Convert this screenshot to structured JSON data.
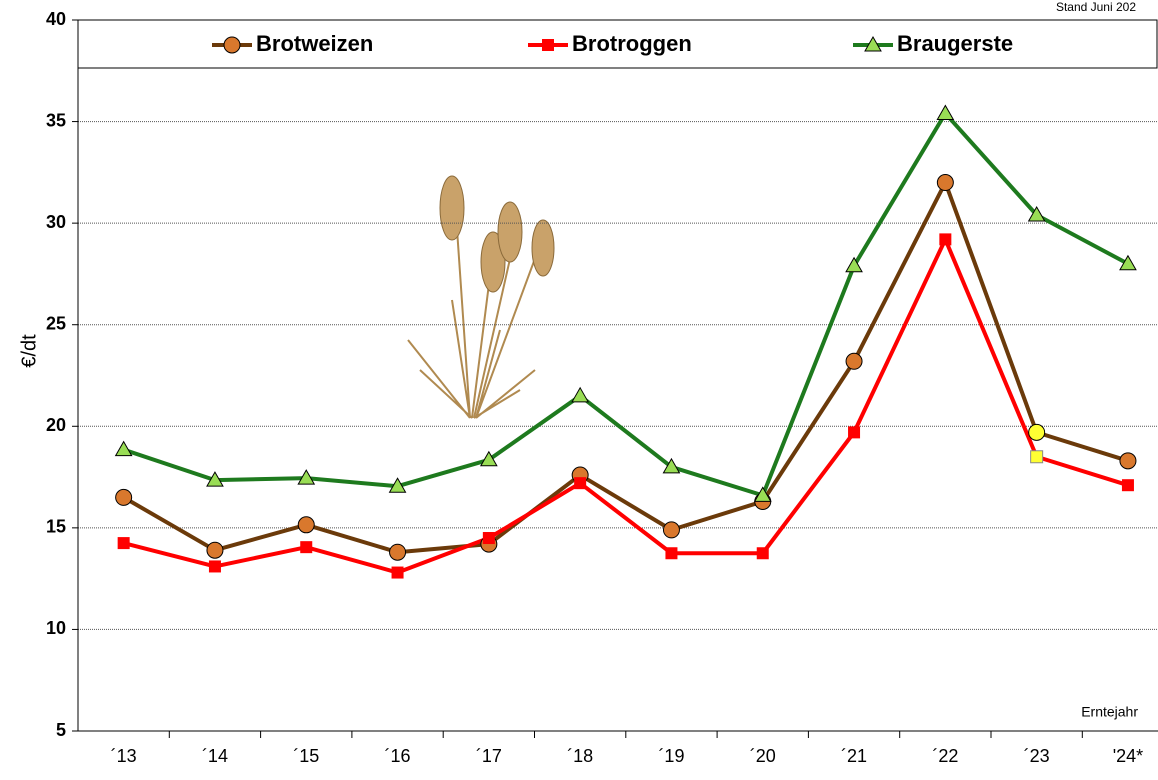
{
  "chart_data": {
    "type": "line",
    "annotations": {
      "status": "Stand Juni 202",
      "x_label": "Erntejahr"
    },
    "y_label": "€/dt",
    "categories": [
      "´13",
      "´14",
      "´15",
      "´16",
      "´17",
      "´18",
      "´19",
      "´20",
      "´21",
      "´22",
      "´23",
      "'24*"
    ],
    "series": [
      {
        "name": "Brotweizen",
        "color": "#6b3a0a",
        "marker": "circle",
        "marker_color": "#d9782d",
        "legend_color": "#1a1aff",
        "highlight": {
          "index": 10,
          "color": "#ffff33"
        },
        "values": [
          16.5,
          13.9,
          15.15,
          13.8,
          14.2,
          17.6,
          14.9,
          16.3,
          23.2,
          32.0,
          19.7,
          18.3
        ]
      },
      {
        "name": "Brotroggen",
        "color": "#ff0000",
        "marker": "square",
        "marker_color": "#ff0000",
        "legend_color": "#ff0000",
        "highlight": {
          "index": 10,
          "color": "#ffff33"
        },
        "values": [
          14.25,
          13.1,
          14.05,
          12.8,
          14.5,
          17.2,
          13.75,
          13.75,
          19.7,
          29.2,
          18.5,
          17.1
        ]
      },
      {
        "name": "Braugerste",
        "color": "#1e7a1e",
        "marker": "triangle",
        "marker_color": "#99dd55",
        "legend_color": "#1e7a1e",
        "values": [
          18.85,
          17.35,
          17.45,
          17.05,
          18.35,
          21.5,
          18.0,
          16.6,
          27.9,
          35.4,
          30.4,
          28.0
        ]
      }
    ],
    "ylim": [
      5,
      40
    ],
    "yticks": [
      5,
      10,
      15,
      20,
      25,
      30,
      35,
      40
    ],
    "grid": true
  }
}
